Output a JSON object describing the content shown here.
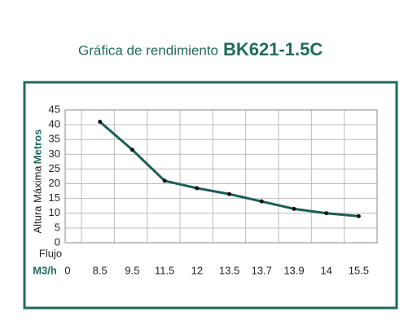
{
  "chart_data": {
    "type": "line",
    "title": "Gráfica de rendimiento",
    "subtitle": "BK621-1.5C",
    "y_label": "Metros",
    "y_sublabel": "Altura Máxima",
    "x_label": "Flujo",
    "x_unit": "M3/h",
    "categories": [
      "0",
      "8.5",
      "9.5",
      "11.5",
      "12",
      "13.5",
      "13.7",
      "13.9",
      "14",
      "15.5"
    ],
    "values": [
      null,
      41,
      31.5,
      21,
      18.5,
      16.5,
      14,
      11.5,
      10,
      9
    ],
    "color": "#1b5e55",
    "ylim": [
      0,
      45
    ],
    "yticks": [
      0,
      5,
      10,
      15,
      20,
      25,
      30,
      35,
      40,
      45
    ],
    "grid": true
  }
}
